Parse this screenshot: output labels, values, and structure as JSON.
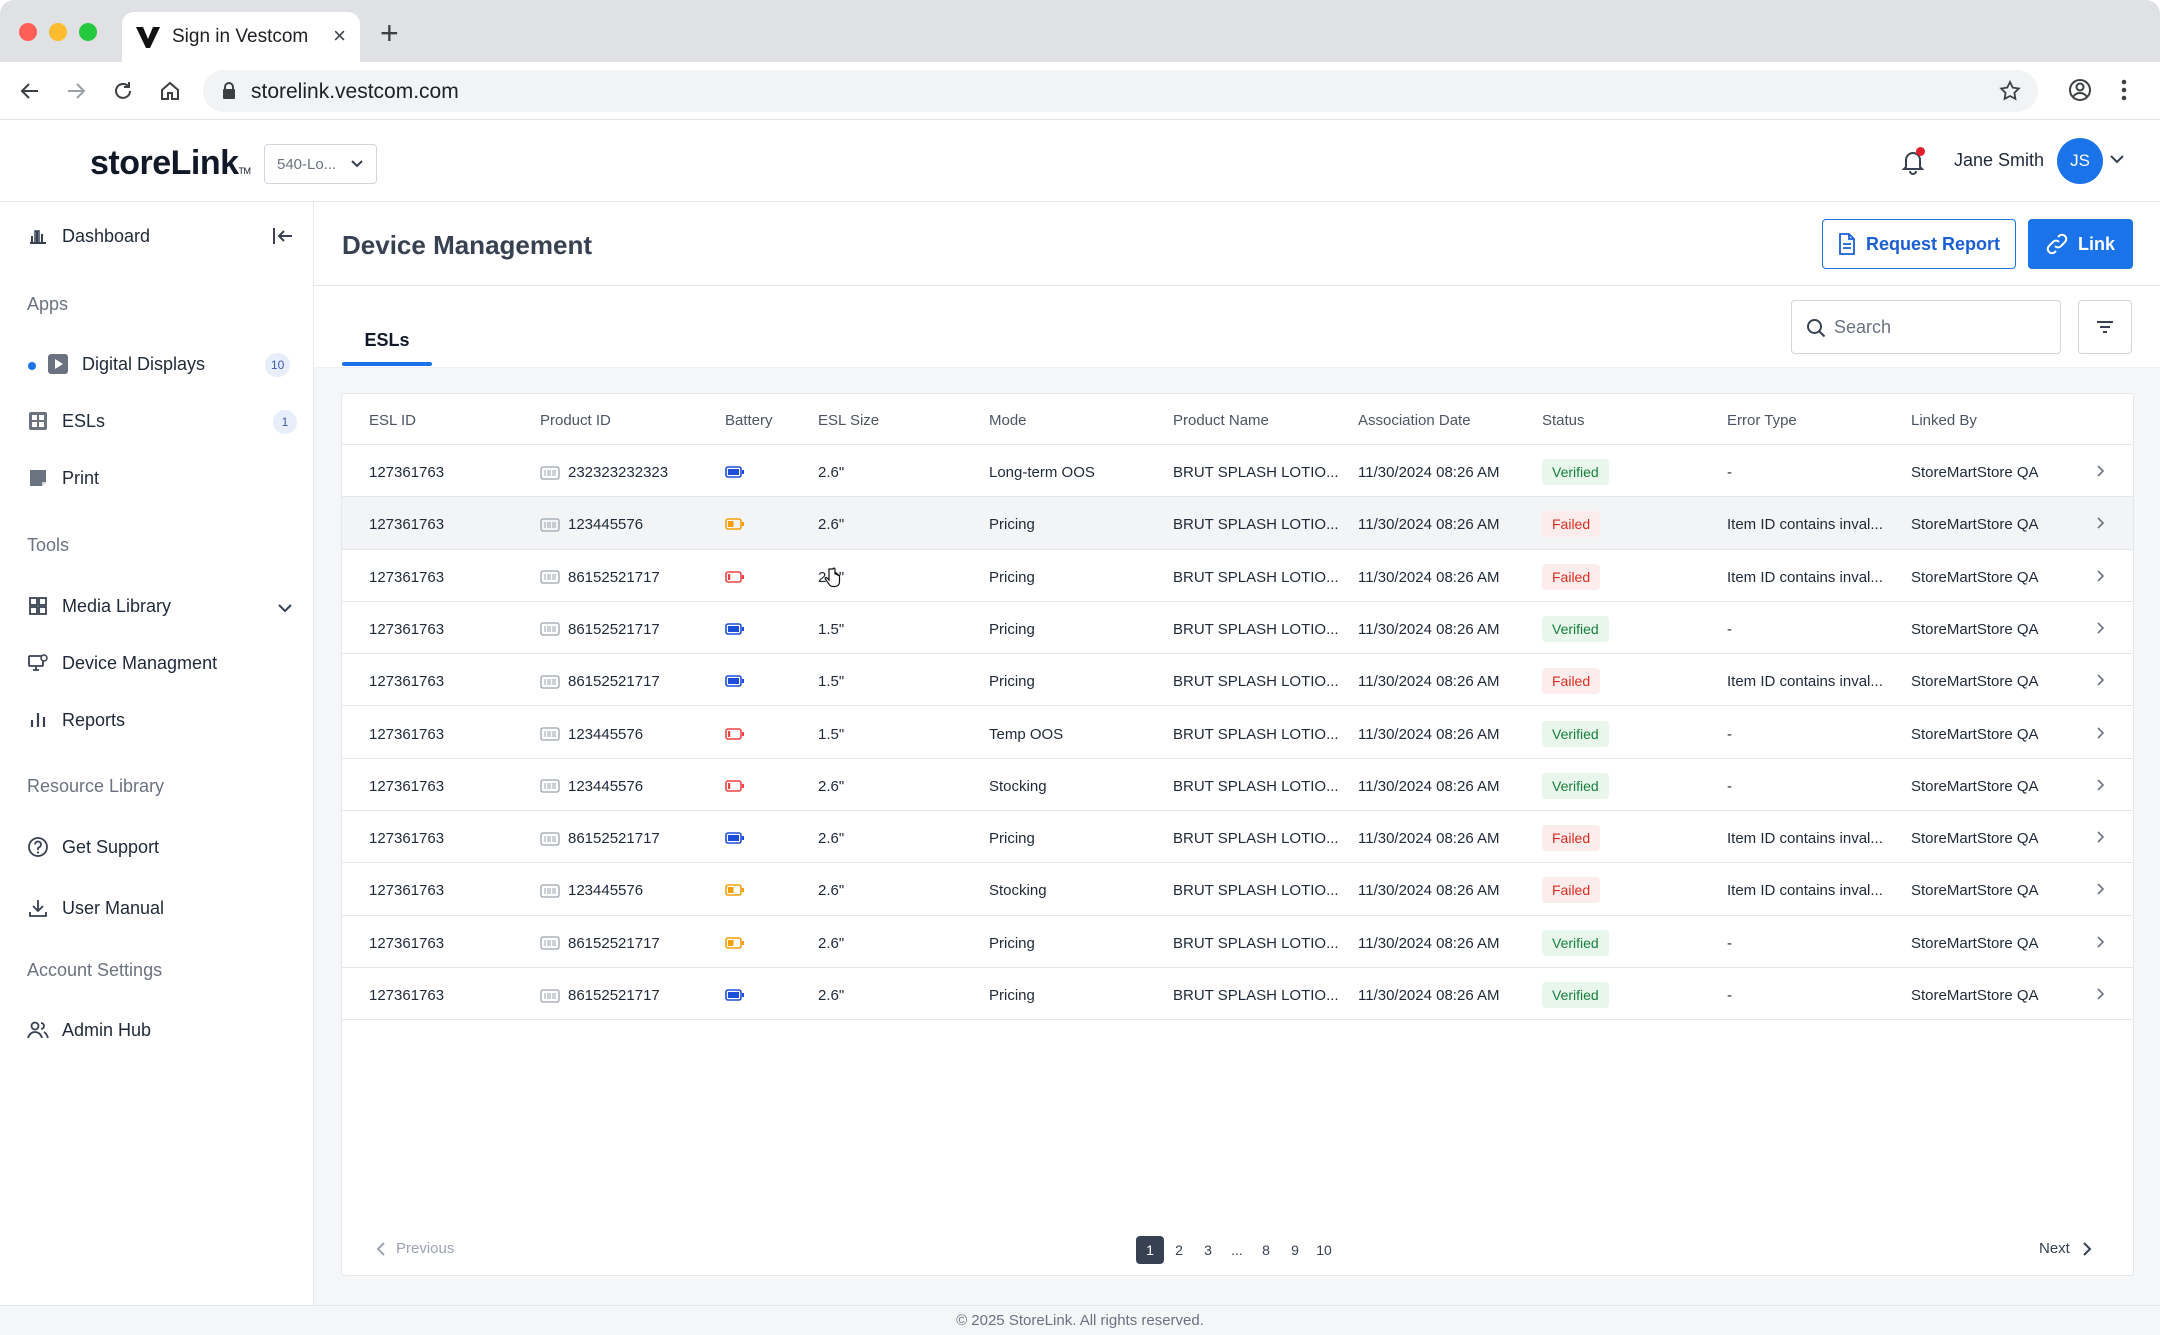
{
  "browser": {
    "tab_title": "Sign in Vestcom",
    "url": "storelink.vestcom.com"
  },
  "header": {
    "logo_text": "storeLink",
    "logo_tm": "TM",
    "store_selector": "540-Lo...",
    "user_name": "Jane Smith",
    "avatar_initials": "JS",
    "notification_dot_color": "#e11d2e"
  },
  "sidebar": {
    "dashboard": "Dashboard",
    "sections": {
      "apps": "Apps",
      "tools": "Tools",
      "resource_library": "Resource Library",
      "account_settings": "Account Settings"
    },
    "apps": [
      {
        "label": "Digital Displays",
        "count": "10",
        "icon": "play-icon"
      },
      {
        "label": "ESLs",
        "count": "1",
        "icon": "grid-icon"
      },
      {
        "label": "Print",
        "icon": "print-icon"
      }
    ],
    "tools": [
      {
        "label": "Media Library",
        "icon": "media-grid-icon"
      },
      {
        "label": "Device Managment",
        "icon": "device-icon"
      },
      {
        "label": "Reports",
        "icon": "bar-chart-icon"
      }
    ],
    "resources": [
      {
        "label": "Get Support",
        "icon": "help-icon"
      },
      {
        "label": "User Manual",
        "icon": "download-icon"
      }
    ],
    "account": [
      {
        "label": "Admin Hub",
        "icon": "users-icon"
      }
    ]
  },
  "main": {
    "title": "Device Management",
    "request_report_label": "Request Report",
    "link_label": "Link",
    "tab_label": "ESLs",
    "search_placeholder": "Search"
  },
  "table": {
    "columns": [
      "ESL ID",
      "Product ID",
      "Battery",
      "ESL Size",
      "Mode",
      "Product Name",
      "Association Date",
      "Status",
      "Error Type",
      "Linked By"
    ],
    "rows": [
      {
        "esl_id": "127361763",
        "product_id": "232323232323",
        "battery": "full",
        "size": "2.6\"",
        "mode": "Long-term OOS",
        "product_name": "BRUT SPLASH LOTIO...",
        "date": "11/30/2024 08:26 AM",
        "status": "Verified",
        "error": "-",
        "linked_by": "StoreMartStore QA"
      },
      {
        "esl_id": "127361763",
        "product_id": "123445576",
        "battery": "medium",
        "size": "2.6\"",
        "mode": "Pricing",
        "product_name": "BRUT SPLASH LOTIO...",
        "date": "11/30/2024 08:26 AM",
        "status": "Failed",
        "error": "Item ID contains inval...",
        "linked_by": "StoreMartStore QA"
      },
      {
        "esl_id": "127361763",
        "product_id": "86152521717",
        "battery": "low",
        "size": "2.6\"",
        "mode": "Pricing",
        "product_name": "BRUT SPLASH LOTIO...",
        "date": "11/30/2024 08:26 AM",
        "status": "Failed",
        "error": "Item ID contains inval...",
        "linked_by": "StoreMartStore QA"
      },
      {
        "esl_id": "127361763",
        "product_id": "86152521717",
        "battery": "full",
        "size": "1.5\"",
        "mode": "Pricing",
        "product_name": "BRUT SPLASH LOTIO...",
        "date": "11/30/2024 08:26 AM",
        "status": "Verified",
        "error": "-",
        "linked_by": "StoreMartStore QA"
      },
      {
        "esl_id": "127361763",
        "product_id": "86152521717",
        "battery": "full",
        "size": "1.5\"",
        "mode": "Pricing",
        "product_name": "BRUT SPLASH LOTIO...",
        "date": "11/30/2024 08:26 AM",
        "status": "Failed",
        "error": "Item ID contains inval...",
        "linked_by": "StoreMartStore QA"
      },
      {
        "esl_id": "127361763",
        "product_id": "123445576",
        "battery": "low",
        "size": "1.5\"",
        "mode": "Temp OOS",
        "product_name": "BRUT SPLASH LOTIO...",
        "date": "11/30/2024 08:26 AM",
        "status": "Verified",
        "error": "-",
        "linked_by": "StoreMartStore QA"
      },
      {
        "esl_id": "127361763",
        "product_id": "123445576",
        "battery": "low",
        "size": "2.6\"",
        "mode": "Stocking",
        "product_name": "BRUT SPLASH LOTIO...",
        "date": "11/30/2024 08:26 AM",
        "status": "Verified",
        "error": "-",
        "linked_by": "StoreMartStore QA"
      },
      {
        "esl_id": "127361763",
        "product_id": "86152521717",
        "battery": "full",
        "size": "2.6\"",
        "mode": "Pricing",
        "product_name": "BRUT SPLASH LOTIO...",
        "date": "11/30/2024 08:26 AM",
        "status": "Failed",
        "error": "Item ID contains inval...",
        "linked_by": "StoreMartStore QA"
      },
      {
        "esl_id": "127361763",
        "product_id": "123445576",
        "battery": "medium",
        "size": "2.6\"",
        "mode": "Stocking",
        "product_name": "BRUT SPLASH LOTIO...",
        "date": "11/30/2024 08:26 AM",
        "status": "Failed",
        "error": "Item ID contains inval...",
        "linked_by": "StoreMartStore QA"
      },
      {
        "esl_id": "127361763",
        "product_id": "86152521717",
        "battery": "medium",
        "size": "2.6\"",
        "mode": "Pricing",
        "product_name": "BRUT SPLASH LOTIO...",
        "date": "11/30/2024 08:26 AM",
        "status": "Verified",
        "error": "-",
        "linked_by": "StoreMartStore QA"
      },
      {
        "esl_id": "127361763",
        "product_id": "86152521717",
        "battery": "full",
        "size": "2.6\"",
        "mode": "Pricing",
        "product_name": "BRUT SPLASH LOTIO...",
        "date": "11/30/2024 08:26 AM",
        "status": "Verified",
        "error": "-",
        "linked_by": "StoreMartStore QA"
      }
    ],
    "hovered_row_index": 1
  },
  "battery_colors": {
    "full": "#1d4ed8",
    "medium": "#f59e0b",
    "low": "#ef4444"
  },
  "pagination": {
    "previous_label": "Previous",
    "next_label": "Next",
    "pages": [
      "1",
      "2",
      "3",
      "...",
      "8",
      "9",
      "10"
    ],
    "current": "1"
  },
  "footer": {
    "text": "© 2025 StoreLink. All rights reserved."
  },
  "colors": {
    "accent": "#1a73e8",
    "verified": "#17803d",
    "failed": "#d92d20"
  }
}
